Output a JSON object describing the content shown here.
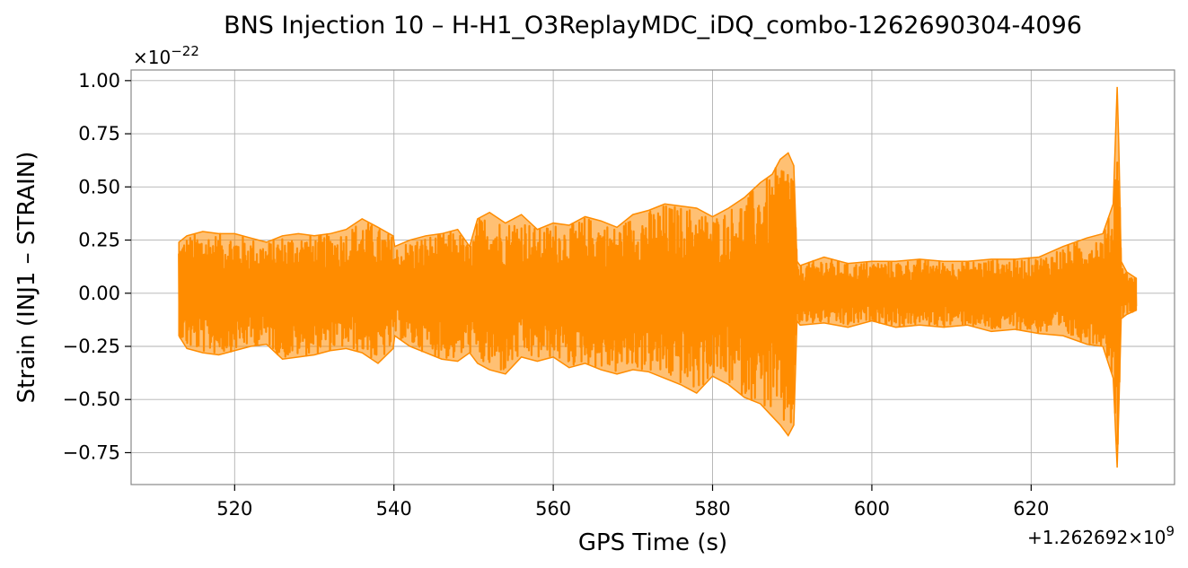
{
  "chart_data": {
    "type": "line",
    "title": "BNS Injection 10 – H-H1_O3ReplayMDC_iDQ_combo-1262690304-4096",
    "xlabel": "GPS Time (s)",
    "ylabel": "Strain (INJ1 – STRAIN)",
    "x_offset_label": "+1.262692×10",
    "x_offset_exponent": "9",
    "y_scale_label": "×10",
    "y_scale_exponent": "−22",
    "xlim": [
      507,
      638
    ],
    "ylim": [
      -0.9,
      1.05
    ],
    "x_ticks": [
      520,
      540,
      560,
      580,
      600,
      620
    ],
    "x_tick_labels": [
      "520",
      "540",
      "560",
      "580",
      "600",
      "620"
    ],
    "y_ticks": [
      1.0,
      0.75,
      0.5,
      0.25,
      0.0,
      -0.25,
      -0.5,
      -0.75
    ],
    "y_tick_labels": [
      "1.00",
      "0.75",
      "0.50",
      "0.25",
      "0.00",
      "−0.25",
      "−0.50",
      "−0.75"
    ],
    "grid": true,
    "series_color": "#ff8c00",
    "series": [
      {
        "x": [
          513,
          514,
          516,
          518,
          520,
          522,
          524,
          526,
          528,
          530,
          532,
          534,
          536,
          538,
          539.9,
          540.1,
          542,
          544,
          546,
          548,
          549.5,
          550.5,
          552,
          554,
          556,
          558,
          560,
          562,
          564,
          566,
          568,
          570,
          572,
          574,
          576,
          578,
          580,
          582,
          584,
          586,
          587.5,
          588.5,
          589.5,
          590.2,
          590.6,
          591,
          594,
          597,
          600,
          603,
          606,
          609,
          612,
          615,
          618,
          621,
          624,
          627,
          629,
          630.3,
          630.8,
          631,
          631.3,
          632,
          633.2
        ],
        "upper": [
          0.24,
          0.27,
          0.29,
          0.28,
          0.28,
          0.26,
          0.24,
          0.27,
          0.28,
          0.27,
          0.28,
          0.3,
          0.35,
          0.31,
          0.27,
          0.22,
          0.25,
          0.27,
          0.28,
          0.3,
          0.22,
          0.35,
          0.38,
          0.33,
          0.37,
          0.3,
          0.33,
          0.32,
          0.36,
          0.34,
          0.31,
          0.37,
          0.39,
          0.42,
          0.41,
          0.4,
          0.36,
          0.4,
          0.45,
          0.52,
          0.56,
          0.63,
          0.66,
          0.6,
          0.15,
          0.13,
          0.17,
          0.14,
          0.15,
          0.15,
          0.16,
          0.15,
          0.15,
          0.16,
          0.16,
          0.17,
          0.22,
          0.26,
          0.28,
          0.42,
          0.97,
          0.7,
          0.15,
          0.1,
          0.07
        ],
        "lower": [
          -0.2,
          -0.26,
          -0.28,
          -0.29,
          -0.27,
          -0.25,
          -0.24,
          -0.31,
          -0.3,
          -0.29,
          -0.27,
          -0.26,
          -0.28,
          -0.33,
          -0.26,
          -0.2,
          -0.25,
          -0.28,
          -0.31,
          -0.32,
          -0.28,
          -0.33,
          -0.36,
          -0.38,
          -0.3,
          -0.32,
          -0.3,
          -0.35,
          -0.33,
          -0.36,
          -0.38,
          -0.36,
          -0.37,
          -0.4,
          -0.43,
          -0.47,
          -0.39,
          -0.43,
          -0.49,
          -0.52,
          -0.58,
          -0.62,
          -0.67,
          -0.62,
          -0.13,
          -0.15,
          -0.14,
          -0.16,
          -0.13,
          -0.16,
          -0.15,
          -0.16,
          -0.15,
          -0.18,
          -0.17,
          -0.19,
          -0.2,
          -0.24,
          -0.25,
          -0.4,
          -0.82,
          -0.55,
          -0.12,
          -0.1,
          -0.08
        ]
      }
    ]
  }
}
